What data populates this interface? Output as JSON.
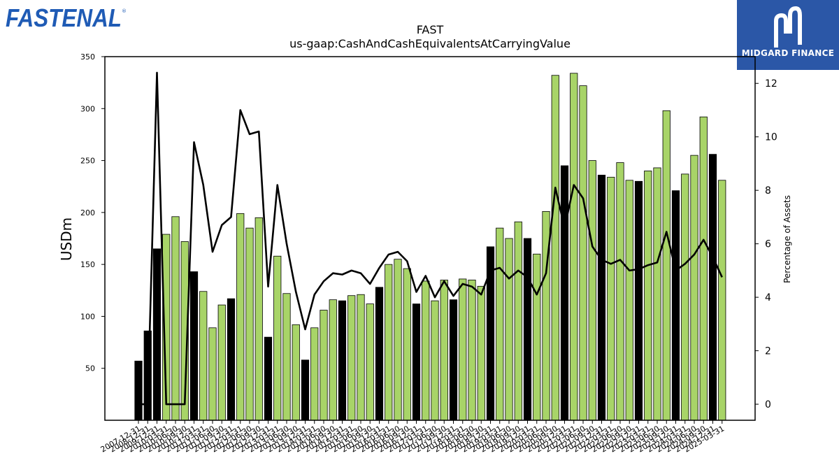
{
  "logo": {
    "text": "FASTENAL",
    "mark": "®",
    "color": "#1f5bb5"
  },
  "badge": {
    "text": "MIDGARD FINANCE",
    "icon": "midgard-m-icon",
    "color": "#2b57a7"
  },
  "chart_data": {
    "type": "bar",
    "title": "FAST",
    "subtitle": "us-gaap:CashAndCashEquivalentsAtCarryingValue",
    "ylabel": "USDm",
    "y2label": "Percentage of Assets",
    "ylim": [
      0,
      350
    ],
    "y2lim": [
      -0.6,
      13.0
    ],
    "yticks": [
      50,
      100,
      150,
      200,
      250,
      300,
      350
    ],
    "y2ticks": [
      0,
      2,
      4,
      6,
      8,
      10,
      12
    ],
    "colors": {
      "annual": "#000000",
      "quarter": "#a8d468",
      "line": "#000000"
    },
    "categories": [
      "2007-12-31",
      "2008-12-31",
      "2009-12-31",
      "2010-03-31",
      "2010-06-30",
      "2010-09-30",
      "2010-12-31",
      "2011-03-31",
      "2011-06-30",
      "2011-09-30",
      "2011-12-31",
      "2012-03-31",
      "2012-06-30",
      "2012-09-30",
      "2012-12-31",
      "2013-03-31",
      "2013-06-30",
      "2013-09-30",
      "2013-12-31",
      "2014-03-31",
      "2014-06-30",
      "2014-09-30",
      "2014-12-31",
      "2015-03-31",
      "2015-06-30",
      "2015-09-30",
      "2015-12-31",
      "2016-03-31",
      "2016-06-30",
      "2016-09-30",
      "2016-12-31",
      "2017-03-31",
      "2017-06-30",
      "2017-09-30",
      "2017-12-31",
      "2018-03-31",
      "2018-06-30",
      "2018-09-30",
      "2018-12-31",
      "2019-03-31",
      "2019-06-30",
      "2019-09-30",
      "2019-12-31",
      "2020-03-31",
      "2020-06-30",
      "2020-09-30",
      "2020-12-31",
      "2021-03-31",
      "2021-06-30",
      "2021-09-30",
      "2021-12-31",
      "2022-03-31",
      "2022-06-30",
      "2022-09-30",
      "2022-12-31",
      "2023-03-31",
      "2023-06-30",
      "2023-09-30",
      "2023-12-31",
      "2024-03-31",
      "2024-06-30",
      "2024-09-30",
      "2024-12-31",
      "2025-03-31"
    ],
    "annual_flags": [
      1,
      1,
      1,
      0,
      0,
      0,
      1,
      0,
      0,
      0,
      1,
      0,
      0,
      0,
      1,
      0,
      0,
      0,
      1,
      0,
      0,
      0,
      1,
      0,
      0,
      0,
      1,
      0,
      0,
      0,
      1,
      0,
      0,
      0,
      1,
      0,
      0,
      0,
      1,
      0,
      0,
      0,
      1,
      0,
      0,
      0,
      1,
      0,
      0,
      0,
      1,
      0,
      0,
      0,
      1,
      0,
      0,
      0,
      1,
      0,
      0,
      0,
      1,
      0
    ],
    "values": [
      57,
      86,
      165,
      179,
      196,
      172,
      143,
      124,
      89,
      111,
      117,
      199,
      185,
      195,
      80,
      158,
      122,
      92,
      58,
      89,
      106,
      116,
      115,
      120,
      121,
      112,
      128,
      150,
      155,
      146,
      112,
      134,
      115,
      135,
      116,
      136,
      135,
      129,
      167,
      185,
      175,
      191,
      175,
      160,
      201,
      332,
      245,
      334,
      322,
      250,
      236,
      234,
      248,
      231,
      230,
      240,
      243,
      298,
      221,
      237,
      255,
      292,
      256,
      231
    ],
    "pct_assets": [
      0.0,
      0.0,
      12.4,
      0.0,
      0.0,
      0.0,
      9.8,
      8.2,
      5.7,
      6.7,
      7.0,
      11.0,
      10.1,
      10.2,
      4.4,
      8.2,
      6.0,
      4.2,
      2.8,
      4.1,
      4.6,
      4.9,
      4.85,
      5.0,
      4.9,
      4.5,
      5.1,
      5.6,
      5.7,
      5.35,
      4.2,
      4.8,
      4.0,
      4.6,
      4.05,
      4.5,
      4.4,
      4.1,
      5.0,
      5.1,
      4.7,
      5.0,
      4.75,
      4.1,
      4.9,
      8.1,
      6.6,
      8.2,
      7.7,
      5.9,
      5.4,
      5.25,
      5.4,
      5.0,
      5.05,
      5.2,
      5.3,
      6.45,
      5.0,
      5.25,
      5.6,
      6.15,
      5.5,
      4.75
    ]
  }
}
